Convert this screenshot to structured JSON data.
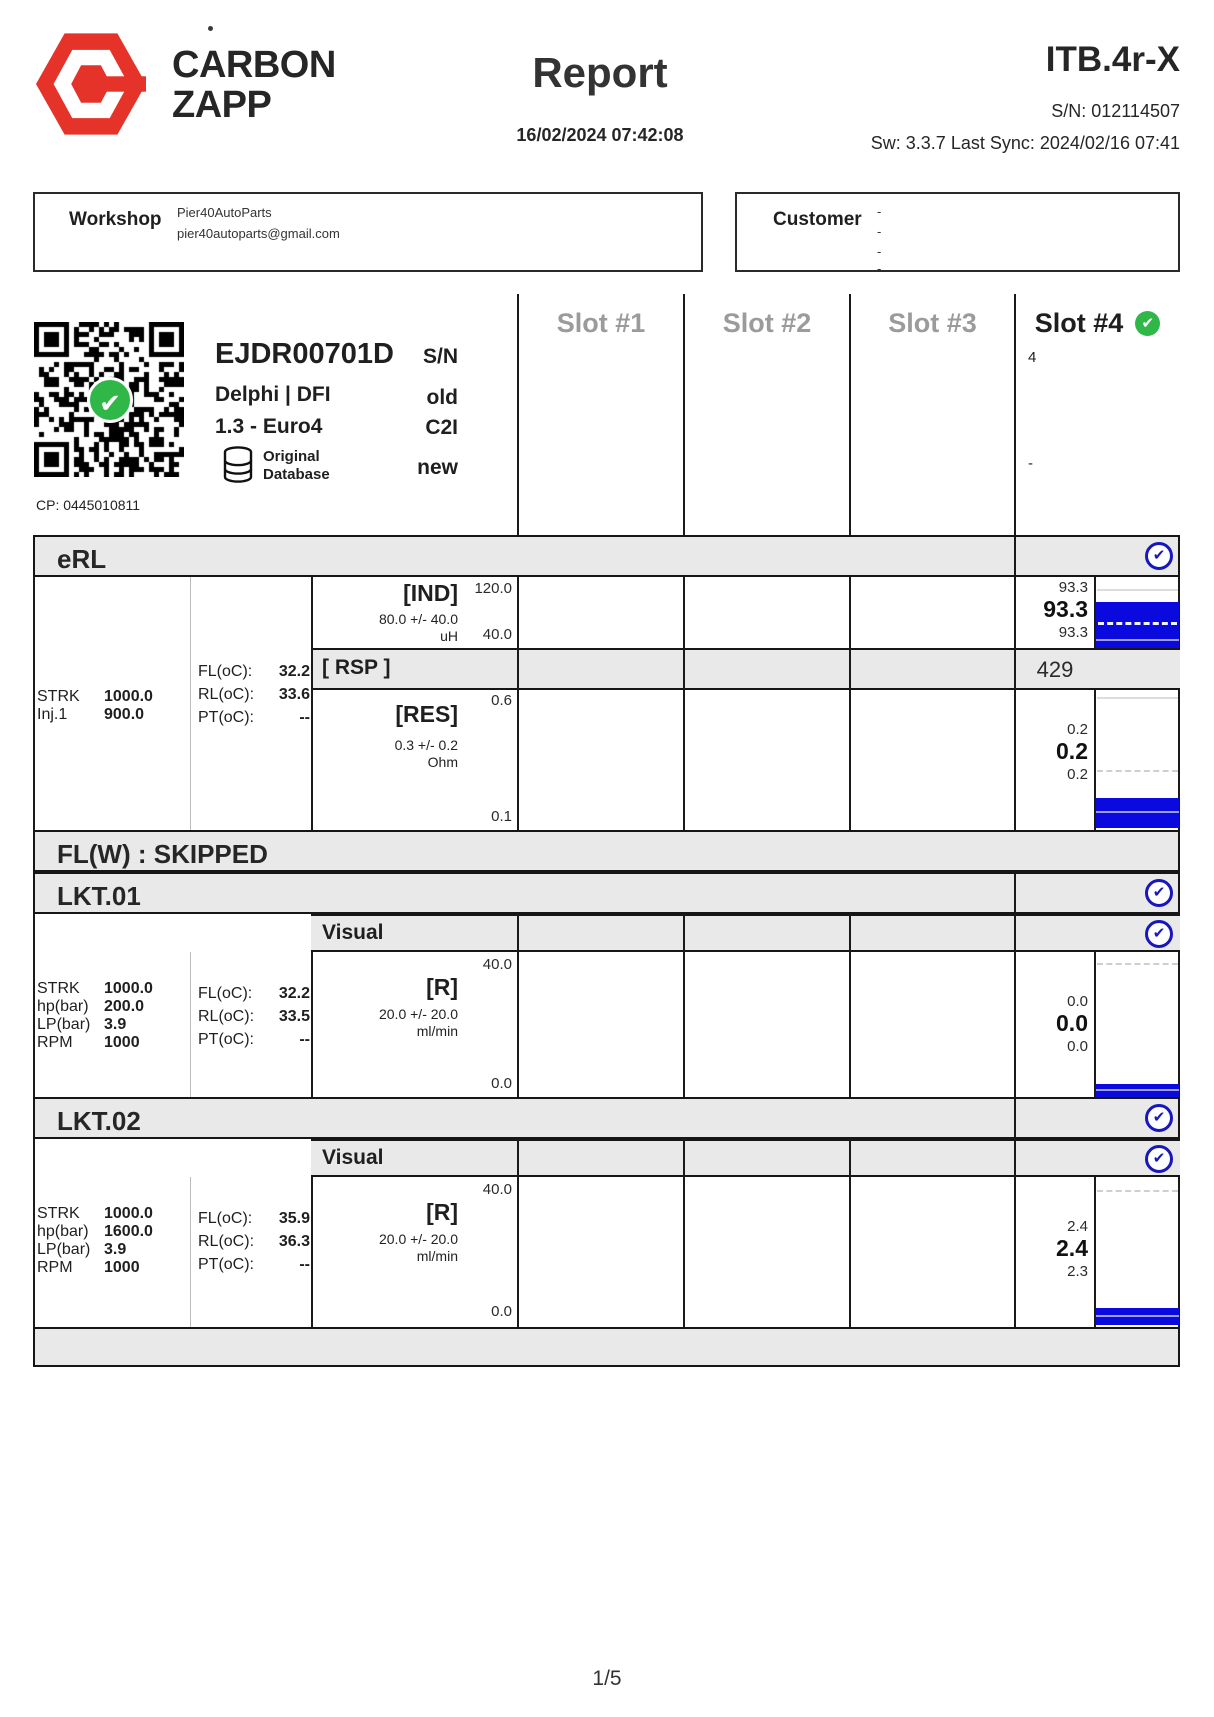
{
  "header": {
    "brand1": "CARBON",
    "brand2": "ZAPP",
    "title": "Report",
    "datetime": "16/02/2024 07:42:08",
    "device": "ITB.4r-X",
    "serial": "S/N: 012114507",
    "sw": "Sw: 3.3.7 Last Sync: 2024/02/16 07:41"
  },
  "workshop": {
    "label": "Workshop",
    "name": "Pier40AutoParts",
    "email": "pier40autoparts@gmail.com"
  },
  "customer": {
    "label": "Customer",
    "dashes": [
      "-",
      "-",
      "-",
      "-"
    ]
  },
  "slots": {
    "s1": "Slot #1",
    "s2": "Slot #2",
    "s3": "Slot #3",
    "s4": "Slot #4",
    "s4_sn": "4",
    "s4_new": "-"
  },
  "injector": {
    "code": "EJDR00701D",
    "maker": "Delphi | DFI",
    "version": "1.3 - Euro4",
    "db1": "Original",
    "db2": "Database",
    "cp": "CP: 0445010811",
    "lbl_sn": "S/N",
    "lbl_old": "old",
    "lbl_c2i": "C2I",
    "lbl_new": "new"
  },
  "erl": {
    "title": "eRL",
    "p1k": "STRK",
    "p1v": "1000.0",
    "p2k": "Inj.1",
    "p2v": "900.0",
    "c1k": "FL(oC):",
    "c1v": "32.2",
    "c2k": "RL(oC):",
    "c2v": "33.6",
    "c3k": "PT(oC):",
    "c3v": "--",
    "ind": {
      "label": "[IND]",
      "tol": "80.0 +/- 40.0",
      "unit": "uH",
      "axmax": "120.0",
      "axmin": "40.0",
      "vmax": "93.3",
      "vavg": "93.3",
      "vmin": "93.3"
    },
    "rsp": {
      "label": "[ RSP ]",
      "value": "429"
    },
    "res": {
      "label": "[RES]",
      "tol": "0.3 +/- 0.2",
      "unit": "Ohm",
      "axmax": "0.6",
      "axmin": "0.1",
      "vmax": "0.2",
      "vavg": "0.2",
      "vmin": "0.2"
    }
  },
  "flw": {
    "title": "FL(W) : SKIPPED"
  },
  "lkt01": {
    "title": "LKT.01",
    "visual": "Visual",
    "p1k": "STRK",
    "p1v": "1000.0",
    "p2k": "hp(bar)",
    "p2v": "200.0",
    "p3k": "LP(bar)",
    "p3v": "3.9",
    "p4k": "RPM",
    "p4v": "1000",
    "c1k": "FL(oC):",
    "c1v": "32.2",
    "c2k": "RL(oC):",
    "c2v": "33.5",
    "c3k": "PT(oC):",
    "c3v": "--",
    "r": {
      "label": "[R]",
      "tol": "20.0 +/- 20.0",
      "unit": "ml/min",
      "axmax": "40.0",
      "axmin": "0.0",
      "vmax": "0.0",
      "vavg": "0.0",
      "vmin": "0.0"
    }
  },
  "lkt02": {
    "title": "LKT.02",
    "visual": "Visual",
    "p1k": "STRK",
    "p1v": "1000.0",
    "p2k": "hp(bar)",
    "p2v": "1600.0",
    "p3k": "LP(bar)",
    "p3v": "3.9",
    "p4k": "RPM",
    "p4v": "1000",
    "c1k": "FL(oC):",
    "c1v": "35.9",
    "c2k": "RL(oC):",
    "c2v": "36.3",
    "c3k": "PT(oC):",
    "c3v": "--",
    "r": {
      "label": "[R]",
      "tol": "20.0 +/- 20.0",
      "unit": "ml/min",
      "axmax": "40.0",
      "axmin": "0.0",
      "vmax": "2.4",
      "vavg": "2.4",
      "vmin": "2.3"
    }
  },
  "footer": {
    "page": "1/5"
  },
  "icons": {
    "check": "✔"
  },
  "colors": {
    "brand_red": "#e6332a",
    "bar_blue": "#0a0ade",
    "check_blue": "#1717bd",
    "check_green": "#2fb848",
    "band_gray": "#e9e9e9",
    "slot_gray": "#9b9b9b"
  }
}
